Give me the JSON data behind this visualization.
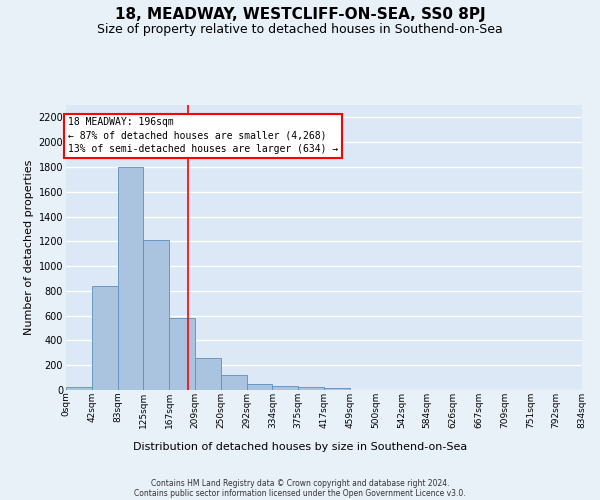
{
  "title": "18, MEADWAY, WESTCLIFF-ON-SEA, SS0 8PJ",
  "subtitle": "Size of property relative to detached houses in Southend-on-Sea",
  "xlabel": "Distribution of detached houses by size in Southend-on-Sea",
  "ylabel": "Number of detached properties",
  "bar_values": [
    25,
    840,
    1800,
    1210,
    580,
    255,
    120,
    45,
    35,
    25,
    15,
    0,
    0,
    0,
    0,
    0,
    0,
    0,
    0,
    0
  ],
  "bin_labels": [
    "0sqm",
    "42sqm",
    "83sqm",
    "125sqm",
    "167sqm",
    "209sqm",
    "250sqm",
    "292sqm",
    "334sqm",
    "375sqm",
    "417sqm",
    "459sqm",
    "500sqm",
    "542sqm",
    "584sqm",
    "626sqm",
    "667sqm",
    "709sqm",
    "751sqm",
    "792sqm",
    "834sqm"
  ],
  "bar_color": "#aac4e0",
  "bar_edge_color": "#5a8fbf",
  "background_color": "#dce8f5",
  "fig_background_color": "#e8f0f8",
  "grid_color": "#ffffff",
  "red_line_x": 4.72,
  "annotation_text": "18 MEADWAY: 196sqm\n← 87% of detached houses are smaller (4,268)\n13% of semi-detached houses are larger (634) →",
  "ylim": [
    0,
    2300
  ],
  "yticks": [
    0,
    200,
    400,
    600,
    800,
    1000,
    1200,
    1400,
    1600,
    1800,
    2000,
    2200
  ],
  "footnote1": "Contains HM Land Registry data © Crown copyright and database right 2024.",
  "footnote2": "Contains public sector information licensed under the Open Government Licence v3.0.",
  "title_fontsize": 11,
  "subtitle_fontsize": 9,
  "ylabel_fontsize": 8,
  "xlabel_fontsize": 8,
  "annot_fontsize": 7,
  "tick_fontsize": 7,
  "footnote_fontsize": 5.5
}
